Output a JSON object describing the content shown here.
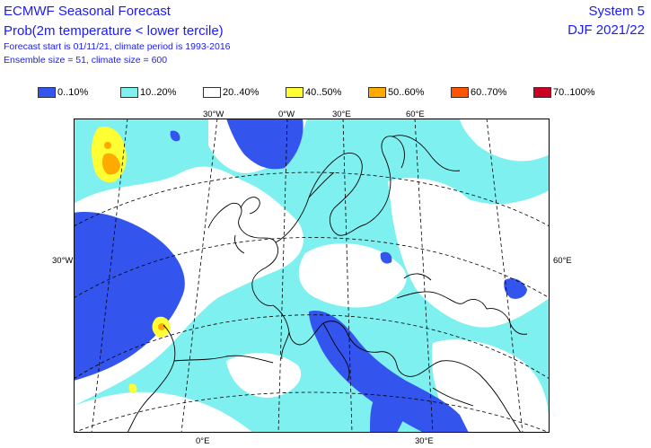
{
  "header": {
    "title": "ECMWF Seasonal Forecast",
    "subtitle": "Prob(2m temperature < lower tercile)",
    "forecast_line": "Forecast start is 01/11/21, climate period is 1993-2016",
    "ensemble_line": "Ensemble size = 51, climate size = 600",
    "system": "System 5",
    "season": "DJF 2021/22"
  },
  "legend": [
    {
      "label": "0..10%",
      "color": "#3355ee"
    },
    {
      "label": "10..20%",
      "color": "#7ff0f0"
    },
    {
      "label": "20..40%",
      "color": "#ffffff"
    },
    {
      "label": "40..50%",
      "color": "#ffff33"
    },
    {
      "label": "50..60%",
      "color": "#ffaa00"
    },
    {
      "label": "60..70%",
      "color": "#ff5500"
    },
    {
      "label": "70..100%",
      "color": "#cc0022"
    }
  ],
  "axis_labels": {
    "top": [
      "30°W",
      "0°W",
      "30°E",
      "60°E"
    ],
    "bottom": [
      "0°E",
      "30°E"
    ],
    "left": "30°W",
    "right": "60°E"
  }
}
